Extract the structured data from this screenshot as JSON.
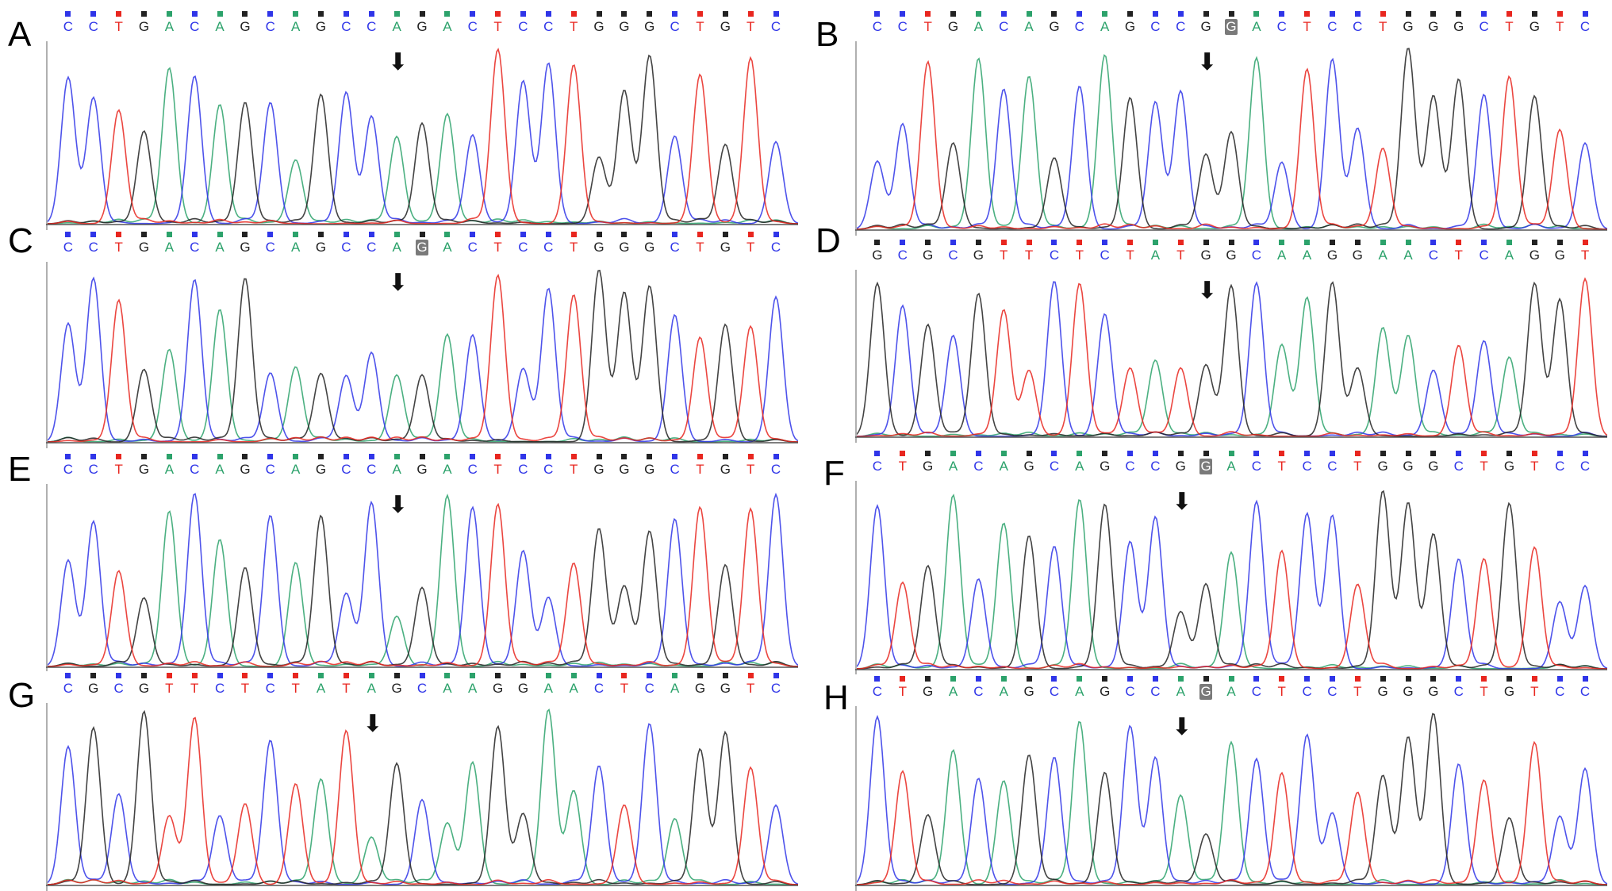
{
  "colors": {
    "A": "#2ca26b",
    "C": "#2f35e8",
    "G": "#222222",
    "T": "#e8261f"
  },
  "panels": [
    {
      "id": "A",
      "seq": [
        "C",
        "C",
        "T",
        "G",
        "A",
        "C",
        "A",
        "G",
        "C",
        "A",
        "G",
        "C",
        "C",
        "A",
        "G",
        "A",
        "C",
        "T",
        "C",
        "C",
        "T",
        "G",
        "G",
        "G",
        "C",
        "T",
        "G",
        "T",
        "C"
      ],
      "highlight": -1,
      "arrow_index": 13
    },
    {
      "id": "B",
      "seq": [
        "C",
        "C",
        "T",
        "G",
        "A",
        "C",
        "A",
        "G",
        "C",
        "A",
        "G",
        "C",
        "C",
        "G",
        "G",
        "A",
        "C",
        "T",
        "C",
        "C",
        "T",
        "G",
        "G",
        "G",
        "C",
        "T",
        "G",
        "T",
        "C"
      ],
      "highlight": 14,
      "arrow_index": 13
    },
    {
      "id": "C",
      "seq": [
        "C",
        "C",
        "T",
        "G",
        "A",
        "C",
        "A",
        "G",
        "C",
        "A",
        "G",
        "C",
        "C",
        "A",
        "G",
        "A",
        "C",
        "T",
        "C",
        "C",
        "T",
        "G",
        "G",
        "G",
        "C",
        "T",
        "G",
        "T",
        "C"
      ],
      "highlight": 14,
      "arrow_index": 13
    },
    {
      "id": "D",
      "seq": [
        "G",
        "C",
        "G",
        "C",
        "G",
        "T",
        "T",
        "C",
        "T",
        "C",
        "T",
        "A",
        "T",
        "G",
        "G",
        "C",
        "A",
        "A",
        "G",
        "G",
        "A",
        "A",
        "C",
        "T",
        "C",
        "A",
        "G",
        "G",
        "T"
      ],
      "highlight": -1,
      "arrow_index": 13
    },
    {
      "id": "E",
      "seq": [
        "C",
        "C",
        "T",
        "G",
        "A",
        "C",
        "A",
        "G",
        "C",
        "A",
        "G",
        "C",
        "C",
        "A",
        "G",
        "A",
        "C",
        "T",
        "C",
        "C",
        "T",
        "G",
        "G",
        "G",
        "C",
        "T",
        "G",
        "T",
        "C"
      ],
      "highlight": -1,
      "arrow_index": 13
    },
    {
      "id": "F",
      "seq": [
        "C",
        "T",
        "G",
        "A",
        "C",
        "A",
        "G",
        "C",
        "A",
        "G",
        "C",
        "C",
        "G",
        "G",
        "A",
        "C",
        "T",
        "C",
        "C",
        "T",
        "G",
        "G",
        "G",
        "C",
        "T",
        "G",
        "T",
        "C",
        "C"
      ],
      "highlight": 13,
      "arrow_index": 12
    },
    {
      "id": "G",
      "seq": [
        "C",
        "G",
        "C",
        "G",
        "T",
        "T",
        "C",
        "T",
        "C",
        "T",
        "A",
        "T",
        "A",
        "G",
        "C",
        "A",
        "A",
        "G",
        "G",
        "A",
        "A",
        "C",
        "T",
        "C",
        "A",
        "G",
        "G",
        "T",
        "C"
      ],
      "highlight": -1,
      "arrow_index": 12
    },
    {
      "id": "H",
      "seq": [
        "C",
        "T",
        "G",
        "A",
        "C",
        "A",
        "G",
        "C",
        "A",
        "G",
        "C",
        "C",
        "A",
        "G",
        "A",
        "C",
        "T",
        "C",
        "C",
        "T",
        "G",
        "G",
        "G",
        "C",
        "T",
        "G",
        "T",
        "C",
        "C"
      ],
      "highlight": 13,
      "arrow_index": 12
    }
  ]
}
